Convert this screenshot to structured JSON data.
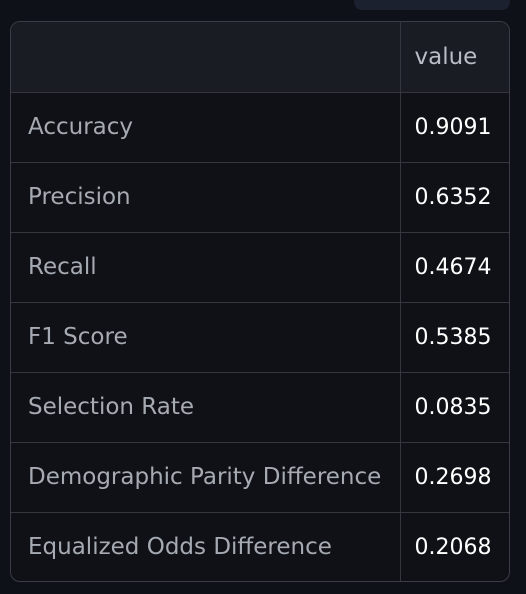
{
  "table": {
    "headers": [
      "",
      "value"
    ],
    "rows": [
      {
        "label": "Accuracy",
        "value": "0.9091"
      },
      {
        "label": "Precision",
        "value": "0.6352"
      },
      {
        "label": "Recall",
        "value": "0.4674"
      },
      {
        "label": "F1 Score",
        "value": "0.5385"
      },
      {
        "label": "Selection Rate",
        "value": "0.0835"
      },
      {
        "label": "Demographic Parity Difference",
        "value": "0.2698"
      },
      {
        "label": "Equalized Odds Difference",
        "value": "0.2068"
      }
    ]
  },
  "colors": {
    "background": "#0e1117",
    "header_bg": "#1a1c24",
    "border": "#34373f",
    "label_text": "#a6aab2",
    "value_text": "#ffffff"
  }
}
